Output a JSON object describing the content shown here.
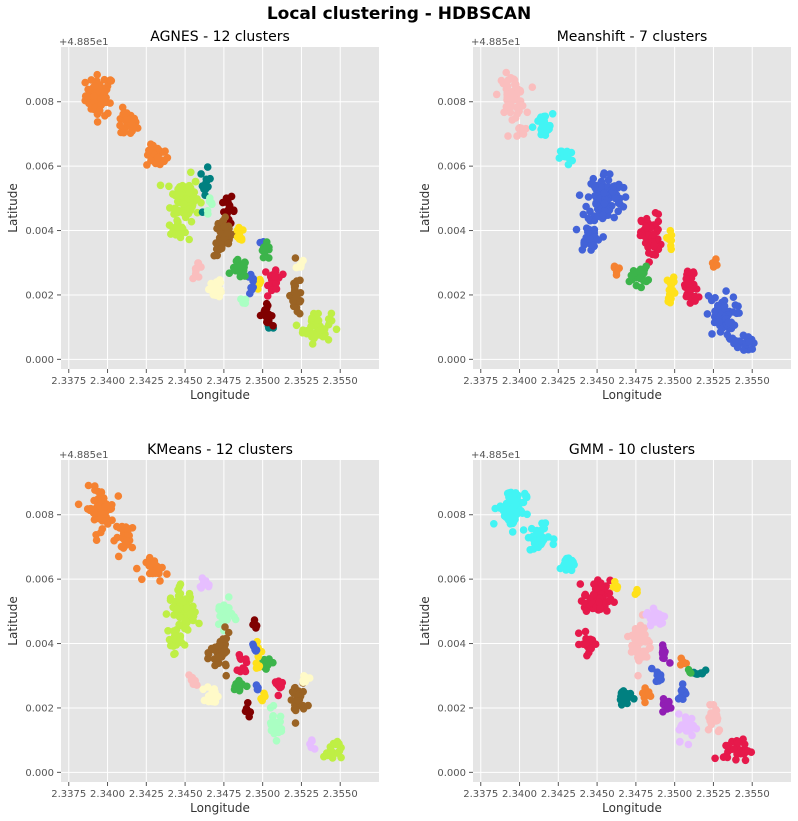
{
  "figure_title": "Local clustering - HDBSCAN",
  "chart_data": [
    {
      "type": "scatter",
      "title": "AGNES - 12 clusters",
      "xlabel": "Longitude",
      "ylabel": "Latitude",
      "y_offset_label": "+4.885e1",
      "xlim": [
        2.337,
        2.3575
      ],
      "ylim": [
        -0.0003,
        0.0097
      ],
      "xticks": [
        "2.3375",
        "2.3400",
        "2.3425",
        "2.3450",
        "2.3475",
        "2.3500",
        "2.3525",
        "2.3550"
      ],
      "yticks": [
        "0.000",
        "0.002",
        "0.004",
        "0.006",
        "0.008"
      ],
      "grid": true,
      "series": [
        {
          "color": "#f58231",
          "blobs": [
            [
              2.3395,
              0.0082,
              0.0013,
              0.0009,
              60
            ],
            [
              2.3412,
              0.0073,
              0.001,
              0.0006,
              30
            ],
            [
              2.3432,
              0.0063,
              0.001,
              0.0005,
              25
            ]
          ]
        },
        {
          "color": "#bfef45",
          "blobs": [
            [
              2.345,
              0.005,
              0.0013,
              0.001,
              80
            ],
            [
              2.3445,
              0.004,
              0.0008,
              0.0004,
              20
            ],
            [
              2.3535,
              0.001,
              0.0013,
              0.0007,
              45
            ]
          ]
        },
        {
          "color": "#008080",
          "blobs": [
            [
              2.3463,
              0.0054,
              0.0005,
              0.0007,
              12
            ],
            [
              2.3505,
              0.001,
              0.0004,
              0.0003,
              5
            ]
          ]
        },
        {
          "color": "#800000",
          "blobs": [
            [
              2.3478,
              0.0046,
              0.0006,
              0.0006,
              20
            ],
            [
              2.3502,
              0.0014,
              0.0006,
              0.0004,
              18
            ]
          ]
        },
        {
          "color": "#9a6324",
          "blobs": [
            [
              2.3475,
              0.0038,
              0.0009,
              0.0009,
              40
            ],
            [
              2.3522,
              0.002,
              0.0006,
              0.001,
              25
            ]
          ]
        },
        {
          "color": "#ffe119",
          "blobs": [
            [
              2.3485,
              0.0038,
              0.0004,
              0.0004,
              10
            ],
            [
              2.3497,
              0.0023,
              0.0003,
              0.0004,
              8
            ]
          ]
        },
        {
          "color": "#4363d8",
          "blobs": [
            [
              2.3493,
              0.0023,
              0.0004,
              0.0005,
              8
            ],
            [
              2.35,
              0.0036,
              0.0003,
              0.0003,
              5
            ]
          ]
        },
        {
          "color": "#3cb44b",
          "blobs": [
            [
              2.3485,
              0.0028,
              0.0007,
              0.0004,
              20
            ],
            [
              2.3502,
              0.0033,
              0.0006,
              0.0004,
              12
            ]
          ]
        },
        {
          "color": "#e6194b",
          "blobs": [
            [
              2.3508,
              0.0025,
              0.0006,
              0.0006,
              25
            ]
          ]
        },
        {
          "color": "#fffac8",
          "blobs": [
            [
              2.347,
              0.0022,
              0.0006,
              0.0004,
              20
            ],
            [
              2.3525,
              0.0029,
              0.0005,
              0.0002,
              6
            ]
          ]
        },
        {
          "color": "#fabebe",
          "blobs": [
            [
              2.3458,
              0.0028,
              0.0005,
              0.0004,
              8
            ]
          ]
        },
        {
          "color": "#aaffc3",
          "blobs": [
            [
              2.3467,
              0.0048,
              0.0005,
              0.0004,
              6
            ],
            [
              2.3487,
              0.0018,
              0.0004,
              0.0003,
              5
            ]
          ]
        }
      ]
    },
    {
      "type": "scatter",
      "title": "Meanshift - 7 clusters",
      "xlabel": "Longitude",
      "ylabel": "Latitude",
      "y_offset_label": "+4.885e1",
      "xlim": [
        2.337,
        2.3575
      ],
      "ylim": [
        -0.0003,
        0.0097
      ],
      "xticks": [
        "2.3375",
        "2.3400",
        "2.3425",
        "2.3450",
        "2.3475",
        "2.3500",
        "2.3525",
        "2.3550"
      ],
      "yticks": [
        "0.000",
        "0.002",
        "0.004",
        "0.006",
        "0.008"
      ],
      "grid": true,
      "series": [
        {
          "color": "#fabebe",
          "blobs": [
            [
              2.3395,
              0.0082,
              0.0012,
              0.0009,
              50
            ],
            [
              2.34,
              0.0071,
              0.0005,
              0.0004,
              8
            ]
          ]
        },
        {
          "color": "#42f4f4",
          "blobs": [
            [
              2.3415,
              0.0072,
              0.0009,
              0.0006,
              25
            ],
            [
              2.343,
              0.0063,
              0.0006,
              0.0004,
              12
            ]
          ]
        },
        {
          "color": "#4363d8",
          "blobs": [
            [
              2.3455,
              0.005,
              0.0016,
              0.0012,
              110
            ],
            [
              2.3445,
              0.0038,
              0.0009,
              0.0006,
              30
            ],
            [
              2.353,
              0.0013,
              0.0014,
              0.001,
              50
            ],
            [
              2.3545,
              0.0005,
              0.001,
              0.0004,
              20
            ]
          ]
        },
        {
          "color": "#e6194b",
          "blobs": [
            [
              2.3485,
              0.0038,
              0.0009,
              0.001,
              55
            ],
            [
              2.351,
              0.0022,
              0.0007,
              0.0008,
              40
            ]
          ]
        },
        {
          "color": "#3cb44b",
          "blobs": [
            [
              2.3477,
              0.0026,
              0.0008,
              0.0004,
              25
            ]
          ]
        },
        {
          "color": "#ffe119",
          "blobs": [
            [
              2.3498,
              0.0022,
              0.0004,
              0.0006,
              15
            ],
            [
              2.3497,
              0.0037,
              0.0003,
              0.0005,
              8
            ]
          ]
        },
        {
          "color": "#f58231",
          "blobs": [
            [
              2.3462,
              0.0028,
              0.0004,
              0.0003,
              6
            ],
            [
              2.3525,
              0.003,
              0.0003,
              0.0002,
              4
            ]
          ]
        }
      ]
    },
    {
      "type": "scatter",
      "title": "KMeans - 12 clusters",
      "xlabel": "Longitude",
      "ylabel": "Latitude",
      "y_offset_label": "+4.885e1",
      "xlim": [
        2.337,
        2.3575
      ],
      "ylim": [
        -0.0003,
        0.0097
      ],
      "xticks": [
        "2.3375",
        "2.3400",
        "2.3425",
        "2.3450",
        "2.3475",
        "2.3500",
        "2.3525",
        "2.3550"
      ],
      "yticks": [
        "0.000",
        "0.002",
        "0.004",
        "0.006",
        "0.008"
      ],
      "grid": true,
      "series": [
        {
          "color": "#f58231",
          "blobs": [
            [
              2.3395,
              0.0082,
              0.0013,
              0.0009,
              60
            ],
            [
              2.3412,
              0.0073,
              0.001,
              0.0006,
              30
            ],
            [
              2.3432,
              0.0063,
              0.001,
              0.0005,
              25
            ]
          ]
        },
        {
          "color": "#bfef45",
          "blobs": [
            [
              2.3448,
              0.005,
              0.0012,
              0.001,
              70
            ],
            [
              2.3443,
              0.004,
              0.0007,
              0.0004,
              15
            ],
            [
              2.3545,
              0.0007,
              0.0008,
              0.0005,
              20
            ]
          ]
        },
        {
          "color": "#e6beff",
          "blobs": [
            [
              2.3463,
              0.0058,
              0.0005,
              0.0003,
              10
            ],
            [
              2.3532,
              0.0009,
              0.0003,
              0.0003,
              5
            ]
          ]
        },
        {
          "color": "#aaffc3",
          "blobs": [
            [
              2.3475,
              0.0049,
              0.0008,
              0.0006,
              30
            ],
            [
              2.3508,
              0.0015,
              0.0007,
              0.0006,
              25
            ]
          ]
        },
        {
          "color": "#9a6324",
          "blobs": [
            [
              2.3473,
              0.0037,
              0.0009,
              0.0008,
              40
            ],
            [
              2.3522,
              0.0022,
              0.0007,
              0.0009,
              25
            ]
          ]
        },
        {
          "color": "#800000",
          "blobs": [
            [
              2.3495,
              0.0046,
              0.0003,
              0.0004,
              5
            ],
            [
              2.349,
              0.0018,
              0.0004,
              0.0004,
              8
            ]
          ]
        },
        {
          "color": "#3cb44b",
          "blobs": [
            [
              2.3485,
              0.0027,
              0.0006,
              0.0004,
              15
            ],
            [
              2.3503,
              0.0034,
              0.0005,
              0.0004,
              10
            ]
          ]
        },
        {
          "color": "#e6194b",
          "blobs": [
            [
              2.3487,
              0.0033,
              0.0004,
              0.0004,
              10
            ],
            [
              2.351,
              0.0027,
              0.0004,
              0.0004,
              10
            ]
          ]
        },
        {
          "color": "#ffe119",
          "blobs": [
            [
              2.3497,
              0.0036,
              0.0003,
              0.0005,
              8
            ],
            [
              2.35,
              0.0023,
              0.0003,
              0.0003,
              5
            ]
          ]
        },
        {
          "color": "#4363d8",
          "blobs": [
            [
              2.3495,
              0.0038,
              0.0003,
              0.0003,
              5
            ],
            [
              2.3497,
              0.0027,
              0.0003,
              0.0003,
              4
            ]
          ]
        },
        {
          "color": "#fffac8",
          "blobs": [
            [
              2.3468,
              0.0024,
              0.0006,
              0.0004,
              20
            ],
            [
              2.3527,
              0.0029,
              0.0005,
              0.0002,
              6
            ]
          ]
        },
        {
          "color": "#fabebe",
          "blobs": [
            [
              2.3455,
              0.0029,
              0.0004,
              0.0003,
              6
            ]
          ]
        }
      ]
    },
    {
      "type": "scatter",
      "title": "GMM - 10 clusters",
      "xlabel": "Longitude",
      "ylabel": "Latitude",
      "y_offset_label": "+4.885e1",
      "xlim": [
        2.337,
        2.3575
      ],
      "ylim": [
        -0.0003,
        0.0097
      ],
      "xticks": [
        "2.3375",
        "2.3400",
        "2.3425",
        "2.3450",
        "2.3475",
        "2.3500",
        "2.3525",
        "2.3550"
      ],
      "yticks": [
        "0.000",
        "0.002",
        "0.004",
        "0.006",
        "0.008"
      ],
      "grid": true,
      "series": [
        {
          "color": "#42f4f4",
          "blobs": [
            [
              2.3395,
              0.0082,
              0.0013,
              0.0009,
              60
            ],
            [
              2.3412,
              0.0073,
              0.001,
              0.0006,
              30
            ],
            [
              2.343,
              0.0064,
              0.0008,
              0.0004,
              15
            ]
          ]
        },
        {
          "color": "#e6194b",
          "blobs": [
            [
              2.345,
              0.0054,
              0.0012,
              0.0008,
              60
            ],
            [
              2.3445,
              0.004,
              0.0008,
              0.0005,
              20
            ],
            [
              2.354,
              0.0007,
              0.0012,
              0.0005,
              30
            ]
          ]
        },
        {
          "color": "#ffe119",
          "blobs": [
            [
              2.3462,
              0.0058,
              0.0003,
              0.0003,
              4
            ],
            [
              2.3475,
              0.0057,
              0.0003,
              0.0002,
              3
            ]
          ]
        },
        {
          "color": "#fabebe",
          "blobs": [
            [
              2.3478,
              0.004,
              0.0009,
              0.0012,
              50
            ],
            [
              2.3525,
              0.0018,
              0.0008,
              0.0008,
              25
            ]
          ]
        },
        {
          "color": "#e6beff",
          "blobs": [
            [
              2.3488,
              0.0048,
              0.0009,
              0.0005,
              20
            ],
            [
              2.3508,
              0.0014,
              0.0008,
              0.0006,
              25
            ]
          ]
        },
        {
          "color": "#911eb4",
          "blobs": [
            [
              2.3493,
              0.0037,
              0.0004,
              0.0004,
              12
            ],
            [
              2.3495,
              0.0021,
              0.0004,
              0.0004,
              10
            ]
          ]
        },
        {
          "color": "#4363d8",
          "blobs": [
            [
              2.349,
              0.003,
              0.0004,
              0.0003,
              10
            ],
            [
              2.3505,
              0.0025,
              0.0004,
              0.0004,
              10
            ]
          ]
        },
        {
          "color": "#f58231",
          "blobs": [
            [
              2.3482,
              0.0024,
              0.0005,
              0.0004,
              12
            ],
            [
              2.3505,
              0.0034,
              0.0004,
              0.0003,
              6
            ]
          ]
        },
        {
          "color": "#008080",
          "blobs": [
            [
              2.3468,
              0.0024,
              0.0006,
              0.0004,
              20
            ],
            [
              2.3515,
              0.0031,
              0.0006,
              0.0002,
              8
            ]
          ]
        },
        {
          "color": "#3cb44b",
          "blobs": [
            [
              2.351,
              0.0031,
              0.0003,
              0.0002,
              3
            ]
          ]
        }
      ]
    }
  ]
}
